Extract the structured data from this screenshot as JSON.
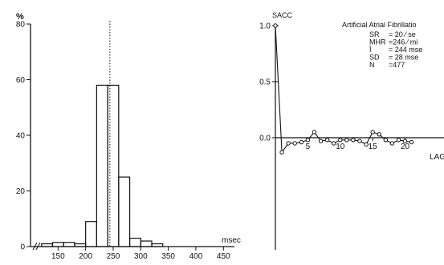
{
  "chart_data": [
    {
      "type": "bar",
      "title": "",
      "xlabel": "msec",
      "ylabel": "%",
      "xlim": [
        100,
        470
      ],
      "ylim": [
        0,
        80
      ],
      "x_ticks": [
        "150",
        "200",
        "250",
        "300",
        "350",
        "400",
        "450"
      ],
      "y_ticks": [
        "0",
        "20",
        "40",
        "60",
        "80"
      ],
      "bins": [
        {
          "from": 120,
          "to": 140,
          "value": 1
        },
        {
          "from": 140,
          "to": 160,
          "value": 1.5
        },
        {
          "from": 160,
          "to": 180,
          "value": 1.5
        },
        {
          "from": 180,
          "to": 200,
          "value": 1
        },
        {
          "from": 200,
          "to": 220,
          "value": 9
        },
        {
          "from": 220,
          "to": 240,
          "value": 58
        },
        {
          "from": 240,
          "to": 260,
          "value": 58
        },
        {
          "from": 260,
          "to": 280,
          "value": 25
        },
        {
          "from": 280,
          "to": 300,
          "value": 3
        },
        {
          "from": 300,
          "to": 320,
          "value": 2
        },
        {
          "from": 320,
          "to": 340,
          "value": 1
        },
        {
          "from": 340,
          "to": 360,
          "value": 0
        },
        {
          "from": 360,
          "to": 380,
          "value": 0
        }
      ],
      "reference_line_x": 244,
      "reference_line_style": "dotted"
    },
    {
      "type": "line",
      "title": "",
      "xlabel": "LAG",
      "ylabel": "",
      "top_label": "SACC",
      "xlim": [
        0,
        26
      ],
      "ylim": [
        -1.0,
        1.0
      ],
      "x_ticks": [
        "5",
        "10",
        "15",
        "20"
      ],
      "y_ticks": [
        "1.0",
        "0.5",
        "0.0"
      ],
      "x": [
        0,
        1,
        2,
        3,
        4,
        5,
        6,
        7,
        8,
        9,
        10,
        11,
        12,
        13,
        14,
        15,
        16,
        17,
        18,
        19,
        20,
        21
      ],
      "values": [
        1.0,
        -0.13,
        -0.05,
        -0.05,
        -0.04,
        -0.02,
        0.05,
        -0.03,
        -0.02,
        -0.05,
        -0.02,
        -0.02,
        -0.02,
        -0.03,
        -0.06,
        0.05,
        0.03,
        -0.02,
        -0.05,
        -0.02,
        -0.03,
        -0.04
      ]
    }
  ],
  "annotation": {
    "title": "Artificial Atrial Fibrillatio",
    "lines": [
      {
        "label": "SR",
        "value": "= 20 ⁄ se"
      },
      {
        "label": "MHR",
        "value": "=246 ⁄ mi"
      },
      {
        "label": "Ī",
        "value": "= 244 mse"
      },
      {
        "label": "SD",
        "value": "= 28 mse"
      },
      {
        "label": "N",
        "value": "=477"
      }
    ]
  },
  "colors": {
    "ink": "#111111",
    "background": "#ffffff"
  }
}
